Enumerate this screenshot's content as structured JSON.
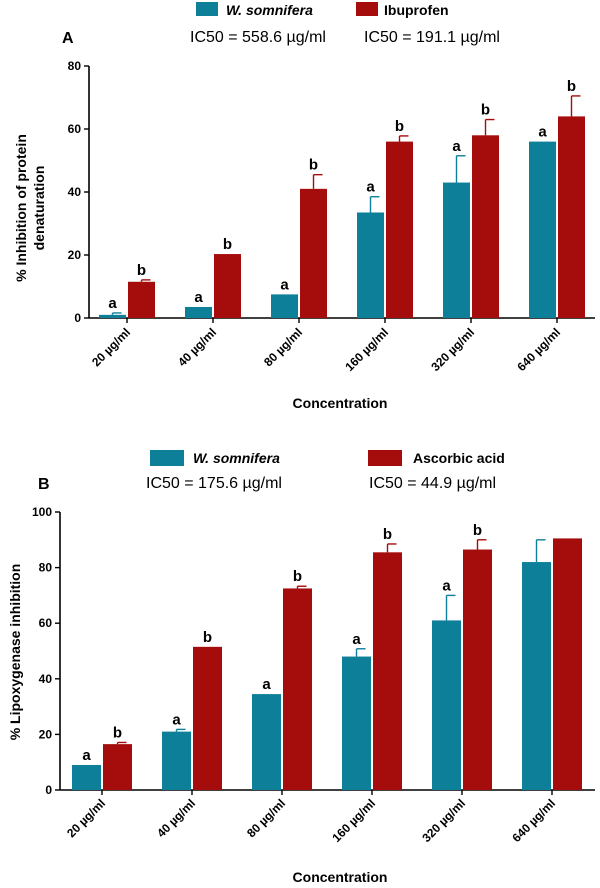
{
  "chart_data": [
    {
      "type": "bar",
      "panel_label": "A",
      "ylabel_lines": [
        "% Inhibition of protein",
        "denaturation"
      ],
      "xlabel": "Concentration",
      "ylim": [
        0,
        80
      ],
      "yticks": [
        0,
        20,
        40,
        60,
        80
      ],
      "categories": [
        "20 µg/ml",
        "40 µg/ml",
        "80 µg/ml",
        "160 µg/ml",
        "320 µg/ml",
        "640 µg/ml"
      ],
      "legend": {
        "position": "top"
      },
      "series": [
        {
          "name": "W. somnifera",
          "name_italic": true,
          "color": "#0e7f99",
          "ic50": "IC50 = 558.6 µg/ml",
          "values": [
            1.0,
            3.5,
            7.5,
            33.5,
            43,
            56
          ],
          "errors": [
            0.6,
            0,
            0,
            5,
            8.5,
            0
          ],
          "labels": [
            "a",
            "a",
            "a",
            "a",
            "a",
            "a"
          ]
        },
        {
          "name": "Ibuprofen",
          "name_italic": false,
          "color": "#a50c0c",
          "ic50": "IC50 = 191.1 µg/ml",
          "values": [
            11.5,
            20.3,
            41,
            56,
            58,
            64
          ],
          "errors": [
            0.6,
            0,
            4.5,
            1.8,
            5,
            6.5
          ],
          "labels": [
            "b",
            "b",
            "b",
            "b",
            "b",
            "b"
          ]
        }
      ]
    },
    {
      "type": "bar",
      "panel_label": "B",
      "ylabel_lines": [
        "% Lipoxygenase inhibition"
      ],
      "xlabel": "Concentration",
      "ylim": [
        0,
        100
      ],
      "yticks": [
        0,
        20,
        40,
        60,
        80,
        100
      ],
      "categories": [
        "20 µg/ml",
        "40 µg/ml",
        "80 µg/ml",
        "160 µg/ml",
        "320 µg/ml",
        "640 µg/ml"
      ],
      "legend": {
        "position": "top"
      },
      "series": [
        {
          "name": "W. somnifera",
          "name_italic": true,
          "color": "#0e7f99",
          "ic50": "IC50 = 175.6 µg/ml",
          "values": [
            9,
            21,
            34.5,
            48,
            61,
            82
          ],
          "errors": [
            0,
            0.8,
            0,
            2.8,
            9,
            8
          ],
          "labels": [
            "a",
            "a",
            "a",
            "a",
            "a",
            ""
          ]
        },
        {
          "name": "Ascorbic acid",
          "name_italic": false,
          "color": "#a50c0c",
          "ic50": "IC50 = 44.9 µg/ml",
          "values": [
            16.5,
            51.5,
            72.5,
            85.5,
            86.5,
            90.5
          ],
          "errors": [
            0.6,
            0,
            0.8,
            3,
            3.5,
            0
          ],
          "labels": [
            "b",
            "b",
            "b",
            "b",
            "b",
            ""
          ]
        }
      ]
    }
  ]
}
